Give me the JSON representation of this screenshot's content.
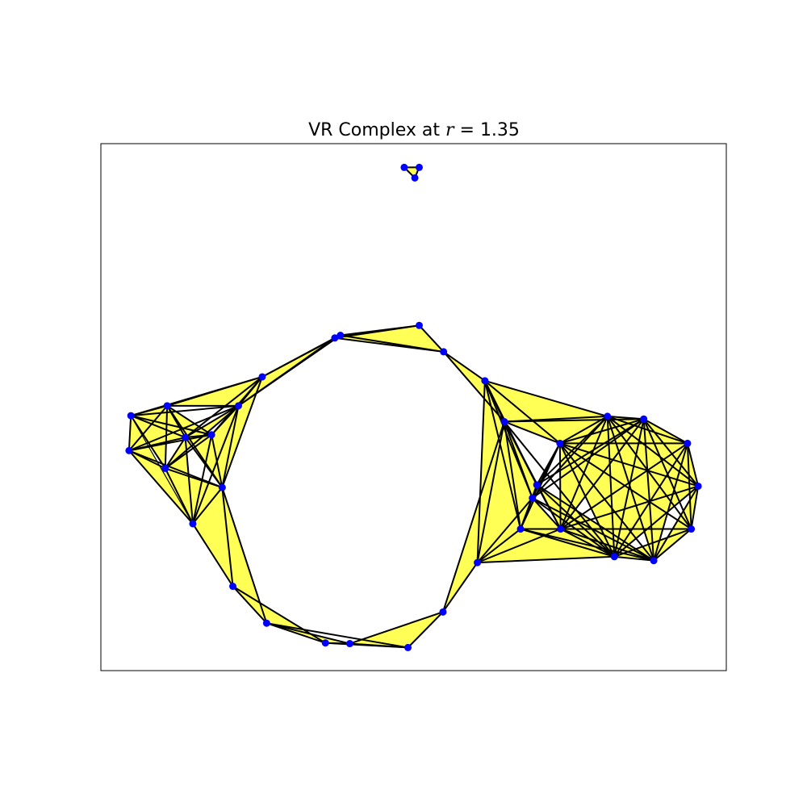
{
  "chart_data": {
    "type": "scatter",
    "title": {
      "prefix": "VR Complex at ",
      "var": "r",
      "eq": " = ",
      "value": "1.35"
    },
    "xlabel": "",
    "ylabel": "",
    "xlim": [
      0,
      10
    ],
    "ylim": [
      0,
      8
    ],
    "grid": false,
    "ticks": false,
    "colors": {
      "face": "#ffff55",
      "edge": "#000000",
      "vertex": "#0000ff",
      "background": "#ffffff"
    },
    "points": [
      [
        4.85,
        7.64
      ],
      [
        5.09,
        7.64
      ],
      [
        5.02,
        7.48
      ],
      [
        3.74,
        5.05
      ],
      [
        3.83,
        5.09
      ],
      [
        5.09,
        5.24
      ],
      [
        5.48,
        4.84
      ],
      [
        2.58,
        4.46
      ],
      [
        2.2,
        4.02
      ],
      [
        0.48,
        3.87
      ],
      [
        1.06,
        4.02
      ],
      [
        1.35,
        3.54
      ],
      [
        1.77,
        3.58
      ],
      [
        0.45,
        3.34
      ],
      [
        1.03,
        3.07
      ],
      [
        1.94,
        2.78
      ],
      [
        1.47,
        2.23
      ],
      [
        2.11,
        1.28
      ],
      [
        2.65,
        0.72
      ],
      [
        3.59,
        0.42
      ],
      [
        3.98,
        0.41
      ],
      [
        4.91,
        0.35
      ],
      [
        5.47,
        0.89
      ],
      [
        6.14,
        4.4
      ],
      [
        6.45,
        3.78
      ],
      [
        7.34,
        3.45
      ],
      [
        8.1,
        3.86
      ],
      [
        8.68,
        3.82
      ],
      [
        9.38,
        3.45
      ],
      [
        9.55,
        2.8
      ],
      [
        9.44,
        2.15
      ],
      [
        8.84,
        1.67
      ],
      [
        8.21,
        1.73
      ],
      [
        7.35,
        2.15
      ],
      [
        6.71,
        2.15
      ],
      [
        6.97,
        2.82
      ],
      [
        6.9,
        2.62
      ],
      [
        6.02,
        1.64
      ]
    ],
    "triangles": [
      [
        0,
        1,
        2
      ],
      [
        3,
        5,
        6
      ],
      [
        4,
        5,
        6
      ],
      [
        3,
        4,
        6
      ],
      [
        7,
        8,
        3
      ],
      [
        7,
        8,
        4
      ],
      [
        9,
        10,
        11
      ],
      [
        9,
        12,
        13
      ],
      [
        10,
        12,
        13
      ],
      [
        9,
        10,
        14
      ],
      [
        8,
        11,
        14
      ],
      [
        11,
        12,
        15
      ],
      [
        10,
        12,
        15
      ],
      [
        14,
        15,
        16
      ],
      [
        13,
        14,
        16
      ],
      [
        11,
        14,
        16
      ],
      [
        8,
        12,
        15
      ],
      [
        7,
        8,
        15
      ],
      [
        10,
        7,
        8
      ],
      [
        9,
        13,
        16
      ],
      [
        15,
        16,
        17
      ],
      [
        15,
        17,
        18
      ],
      [
        17,
        18,
        19
      ],
      [
        18,
        19,
        20
      ],
      [
        19,
        20,
        21
      ],
      [
        20,
        21,
        22
      ],
      [
        23,
        24,
        26
      ],
      [
        24,
        25,
        26
      ],
      [
        25,
        26,
        27
      ],
      [
        24,
        26,
        27
      ],
      [
        23,
        24,
        37
      ],
      [
        24,
        34,
        37
      ],
      [
        33,
        34,
        37
      ],
      [
        32,
        33,
        37
      ],
      [
        24,
        36,
        34
      ],
      [
        24,
        35,
        36
      ],
      [
        25,
        35,
        36
      ],
      [
        25,
        26,
        33
      ],
      [
        26,
        27,
        28
      ],
      [
        27,
        28,
        29
      ],
      [
        28,
        29,
        30
      ],
      [
        29,
        30,
        31
      ],
      [
        30,
        31,
        32
      ],
      [
        31,
        32,
        33
      ],
      [
        33,
        34,
        36
      ],
      [
        32,
        33,
        35
      ],
      [
        25,
        27,
        33
      ],
      [
        26,
        28,
        31
      ],
      [
        25,
        28,
        32
      ],
      [
        27,
        29,
        32
      ],
      [
        6,
        23,
        24
      ],
      [
        22,
        24,
        37
      ],
      [
        35,
        31,
        33
      ]
    ],
    "edges": [
      [
        0,
        1
      ],
      [
        1,
        2
      ],
      [
        0,
        2
      ],
      [
        3,
        4
      ],
      [
        4,
        5
      ],
      [
        3,
        5
      ],
      [
        5,
        6
      ],
      [
        3,
        6
      ],
      [
        4,
        6
      ],
      [
        7,
        8
      ],
      [
        7,
        3
      ],
      [
        8,
        3
      ],
      [
        8,
        4
      ],
      [
        7,
        4
      ],
      [
        9,
        10
      ],
      [
        9,
        11
      ],
      [
        9,
        12
      ],
      [
        9,
        13
      ],
      [
        9,
        14
      ],
      [
        9,
        8
      ],
      [
        9,
        7
      ],
      [
        10,
        11
      ],
      [
        10,
        12
      ],
      [
        10,
        13
      ],
      [
        10,
        14
      ],
      [
        10,
        15
      ],
      [
        10,
        8
      ],
      [
        10,
        7
      ],
      [
        11,
        12
      ],
      [
        11,
        13
      ],
      [
        11,
        14
      ],
      [
        11,
        15
      ],
      [
        11,
        16
      ],
      [
        11,
        8
      ],
      [
        11,
        7
      ],
      [
        12,
        13
      ],
      [
        12,
        14
      ],
      [
        12,
        15
      ],
      [
        12,
        16
      ],
      [
        12,
        8
      ],
      [
        12,
        7
      ],
      [
        13,
        14
      ],
      [
        13,
        15
      ],
      [
        13,
        16
      ],
      [
        13,
        8
      ],
      [
        14,
        15
      ],
      [
        14,
        16
      ],
      [
        14,
        8
      ],
      [
        15,
        16
      ],
      [
        15,
        17
      ],
      [
        15,
        18
      ],
      [
        15,
        8
      ],
      [
        15,
        7
      ],
      [
        16,
        17
      ],
      [
        16,
        8
      ],
      [
        17,
        18
      ],
      [
        17,
        19
      ],
      [
        18,
        19
      ],
      [
        18,
        20
      ],
      [
        18,
        21
      ],
      [
        19,
        20
      ],
      [
        19,
        21
      ],
      [
        20,
        21
      ],
      [
        20,
        22
      ],
      [
        21,
        22
      ],
      [
        22,
        37
      ],
      [
        22,
        24
      ],
      [
        6,
        23
      ],
      [
        6,
        24
      ],
      [
        23,
        24
      ],
      [
        23,
        25
      ],
      [
        23,
        26
      ],
      [
        23,
        34
      ],
      [
        23,
        35
      ],
      [
        23,
        36
      ],
      [
        23,
        37
      ],
      [
        24,
        25
      ],
      [
        24,
        26
      ],
      [
        24,
        27
      ],
      [
        24,
        32
      ],
      [
        24,
        33
      ],
      [
        24,
        34
      ],
      [
        24,
        35
      ],
      [
        24,
        36
      ],
      [
        24,
        37
      ],
      [
        25,
        26
      ],
      [
        25,
        27
      ],
      [
        25,
        28
      ],
      [
        25,
        29
      ],
      [
        25,
        30
      ],
      [
        25,
        31
      ],
      [
        25,
        32
      ],
      [
        25,
        33
      ],
      [
        25,
        34
      ],
      [
        25,
        35
      ],
      [
        25,
        36
      ],
      [
        26,
        27
      ],
      [
        26,
        28
      ],
      [
        26,
        29
      ],
      [
        26,
        30
      ],
      [
        26,
        31
      ],
      [
        26,
        32
      ],
      [
        26,
        33
      ],
      [
        26,
        35
      ],
      [
        26,
        36
      ],
      [
        27,
        28
      ],
      [
        27,
        29
      ],
      [
        27,
        30
      ],
      [
        27,
        31
      ],
      [
        27,
        32
      ],
      [
        27,
        33
      ],
      [
        27,
        35
      ],
      [
        27,
        36
      ],
      [
        28,
        29
      ],
      [
        28,
        30
      ],
      [
        28,
        31
      ],
      [
        28,
        32
      ],
      [
        28,
        33
      ],
      [
        29,
        30
      ],
      [
        29,
        31
      ],
      [
        29,
        32
      ],
      [
        29,
        33
      ],
      [
        30,
        31
      ],
      [
        30,
        32
      ],
      [
        30,
        33
      ],
      [
        30,
        34
      ],
      [
        31,
        32
      ],
      [
        31,
        33
      ],
      [
        31,
        34
      ],
      [
        31,
        35
      ],
      [
        31,
        36
      ],
      [
        32,
        33
      ],
      [
        32,
        34
      ],
      [
        32,
        35
      ],
      [
        32,
        36
      ],
      [
        32,
        37
      ],
      [
        33,
        34
      ],
      [
        33,
        35
      ],
      [
        33,
        36
      ],
      [
        33,
        37
      ],
      [
        34,
        35
      ],
      [
        34,
        36
      ],
      [
        34,
        37
      ],
      [
        35,
        36
      ],
      [
        36,
        37
      ]
    ]
  }
}
